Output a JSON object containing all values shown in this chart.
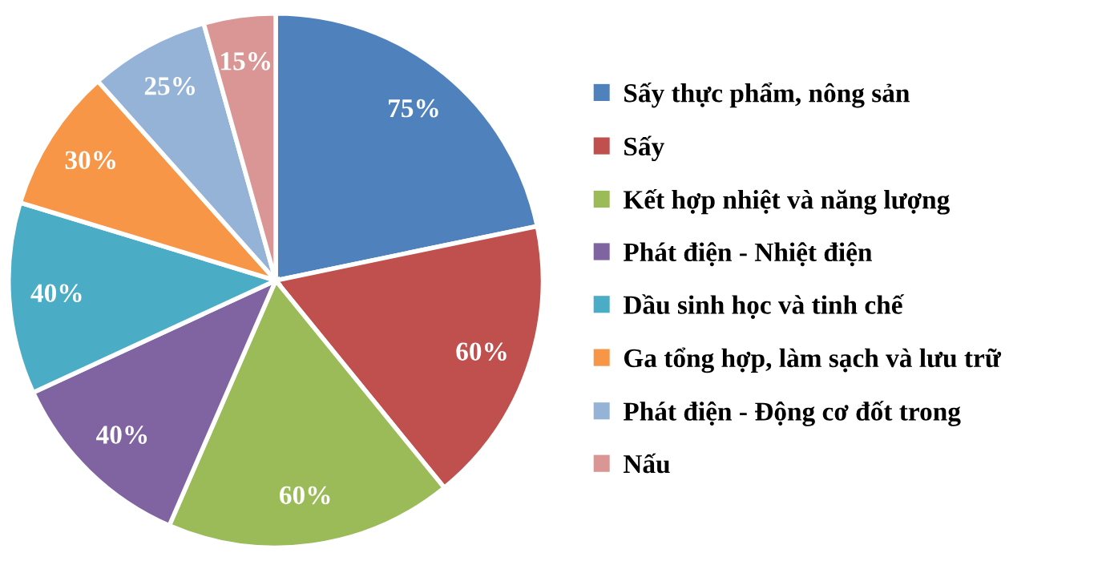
{
  "chart_data": {
    "type": "pie",
    "categories": [
      "Sấy thực phẩm, nông sản",
      "Sấy",
      "Kết hợp nhiệt và năng lượng",
      "Phát điện - Nhiệt điện",
      "Dầu sinh học và tinh chế",
      "Ga tổng hợp, làm sạch và lưu trữ",
      "Phát điện - Động cơ đốt trong",
      "Nấu"
    ],
    "values": [
      75,
      60,
      60,
      40,
      40,
      30,
      25,
      15
    ],
    "colors": [
      "#4f81bd",
      "#c0504d",
      "#9bbb59",
      "#8064a2",
      "#4bacc6",
      "#f79646",
      "#95b3d7",
      "#d99694"
    ],
    "value_labels": [
      "75%",
      "60%",
      "60%",
      "40%",
      "40%",
      "30%",
      "25%",
      "15%"
    ],
    "legend": "right"
  }
}
